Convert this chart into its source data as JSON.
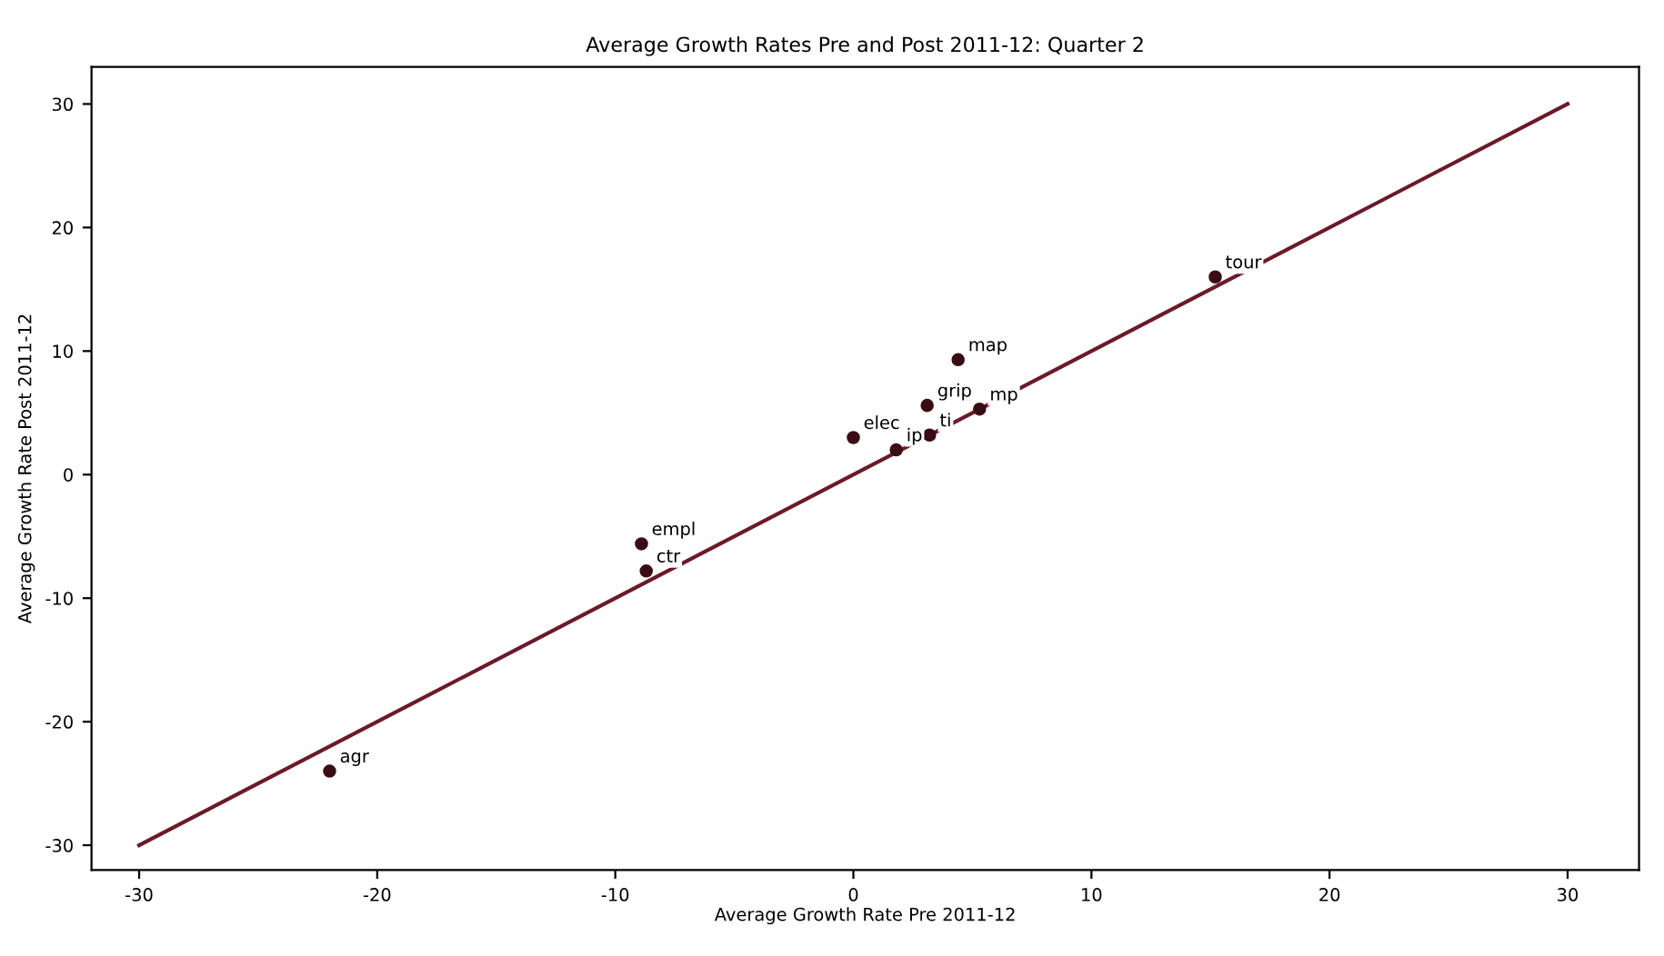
{
  "chart_data": {
    "type": "scatter",
    "title": "Average Growth Rates Pre and Post 2011-12: Quarter 2",
    "xlabel": "Average Growth Rate Pre 2011-12",
    "ylabel": "Average Growth Rate Post 2011-12",
    "xlim": [
      -32,
      33
    ],
    "ylim": [
      -32,
      33
    ],
    "xticks": [
      -30,
      -20,
      -10,
      0,
      10,
      20,
      30
    ],
    "yticks": [
      -30,
      -20,
      -10,
      0,
      10,
      20,
      30
    ],
    "grid": false,
    "marker": "circle",
    "series": [
      {
        "color": "#3a0d14",
        "x": [
          -22,
          -8.9,
          -8.7,
          0,
          1.8,
          3.2,
          3.1,
          5.3,
          4.4,
          15.2
        ],
        "values": [
          -24,
          -5.6,
          -7.8,
          3,
          2,
          3.2,
          5.6,
          5.3,
          9.3,
          16
        ],
        "value_labels": [
          "agr",
          "empl",
          "ctr",
          "elec",
          "ip",
          "ti",
          "grip",
          "mp",
          "map",
          "tour"
        ]
      },
      {
        "type": "line",
        "color": "#6b1a2a",
        "x": [
          -30,
          30
        ],
        "values": [
          -30,
          30
        ],
        "marker": "none",
        "line_style": "solid"
      }
    ]
  }
}
